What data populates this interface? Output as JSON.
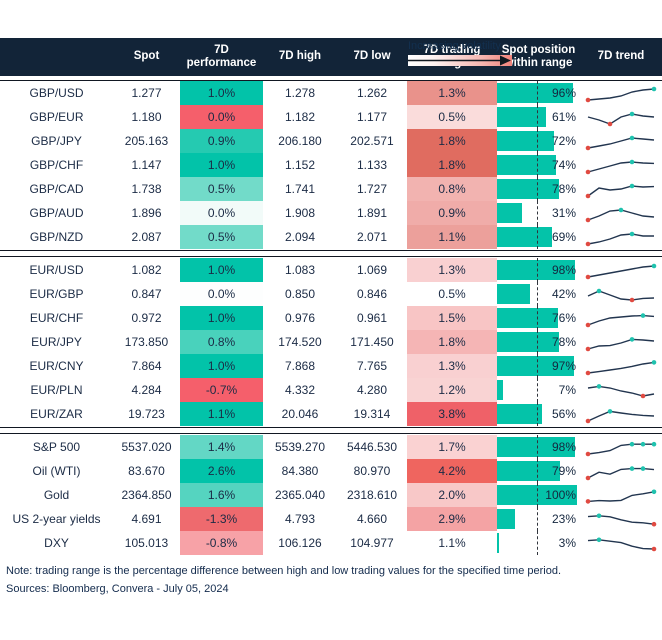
{
  "volatility_legend": {
    "label": "Increasing volatility"
  },
  "chart_data": {
    "type": "table",
    "columns": [
      "",
      "Spot",
      "7D performance",
      "7D high",
      "7D low",
      "7D trading range",
      "Spot position within range",
      "7D trend"
    ],
    "colors": {
      "header_bg": "#122438",
      "header_text": "#ffffff",
      "body_text": "#1b2b45",
      "bar_teal": "#04c3a9",
      "spark_line": "#22354f",
      "spark_min_dot": "#e04a41",
      "spark_max_dot": "#1fc2ae"
    },
    "sections": [
      {
        "rows": [
          {
            "name": "GBP/USD",
            "spot": "1.277",
            "perf": "1.0%",
            "perf_color": "#02c3a9",
            "high": "1.278",
            "low": "1.262",
            "range": "1.3%",
            "range_color": "#e9928b",
            "position_pct": 96,
            "position_label": "96%",
            "trend": {
              "points": [
                1.5,
                2.0,
                2.5,
                3.5,
                5.5,
                6.5,
                7.0
              ],
              "red": [
                0
              ],
              "teal": [
                6
              ]
            }
          },
          {
            "name": "GBP/EUR",
            "spot": "1.180",
            "perf": "0.0%",
            "perf_color": "#f55f6b",
            "high": "1.182",
            "low": "1.177",
            "range": "0.5%",
            "range_color": "#fadcdb",
            "position_pct": 61,
            "position_label": "61%",
            "trend": {
              "points": [
                5.0,
                3.5,
                1.5,
                5.0,
                6.5,
                5.5,
                5.0
              ],
              "red": [
                2
              ],
              "teal": [
                4
              ]
            }
          },
          {
            "name": "GBP/JPY",
            "spot": "205.163",
            "perf": "0.9%",
            "perf_color": "#25cab1",
            "high": "206.180",
            "low": "202.571",
            "range": "1.8%",
            "range_color": "#e06c60",
            "position_pct": 72,
            "position_label": "72%",
            "trend": {
              "points": [
                1.5,
                2.5,
                3.5,
                5.0,
                6.5,
                6.0,
                5.5
              ],
              "red": [
                0
              ],
              "teal": [
                4
              ]
            }
          },
          {
            "name": "GBP/CHF",
            "spot": "1.147",
            "perf": "1.0%",
            "perf_color": "#02c3a9",
            "high": "1.152",
            "low": "1.133",
            "range": "1.8%",
            "range_color": "#e06c60",
            "position_pct": 74,
            "position_label": "74%",
            "trend": {
              "points": [
                1.5,
                3.0,
                4.5,
                6.0,
                6.5,
                6.0,
                5.8
              ],
              "red": [
                0
              ],
              "teal": [
                4
              ]
            }
          },
          {
            "name": "GBP/CAD",
            "spot": "1.738",
            "perf": "0.5%",
            "perf_color": "#72dbc9",
            "high": "1.741",
            "low": "1.727",
            "range": "0.8%",
            "range_color": "#f2b3b0",
            "position_pct": 78,
            "position_label": "78%",
            "trend": {
              "points": [
                1.5,
                5.5,
                4.5,
                5.0,
                6.5,
                6.0,
                6.2
              ],
              "red": [
                0
              ],
              "teal": [
                4
              ]
            }
          },
          {
            "name": "GBP/AUD",
            "spot": "1.896",
            "perf": "0.0%",
            "perf_color": "#f2fbf9",
            "high": "1.908",
            "low": "1.891",
            "range": "0.9%",
            "range_color": "#f0aca9",
            "position_pct": 31,
            "position_label": "31%",
            "trend": {
              "points": [
                1.5,
                3.5,
                6.0,
                6.5,
                5.0,
                3.5,
                3.0
              ],
              "red": [
                0
              ],
              "teal": [
                3
              ]
            }
          },
          {
            "name": "GBP/NZD",
            "spot": "2.087",
            "perf": "0.5%",
            "perf_color": "#72dbc9",
            "high": "2.094",
            "low": "2.071",
            "range": "1.1%",
            "range_color": "#eca09b",
            "position_pct": 69,
            "position_label": "69%",
            "trend": {
              "points": [
                1.5,
                2.5,
                4.0,
                6.0,
                6.5,
                5.5,
                5.5
              ],
              "red": [
                0
              ],
              "teal": [
                4
              ]
            }
          }
        ]
      },
      {
        "rows": [
          {
            "name": "EUR/USD",
            "spot": "1.082",
            "perf": "1.0%",
            "perf_color": "#02c3a9",
            "high": "1.083",
            "low": "1.069",
            "range": "1.3%",
            "range_color": "#f9d0d1",
            "position_pct": 98,
            "position_label": "98%",
            "trend": {
              "points": [
                1.5,
                2.5,
                3.5,
                4.5,
                5.5,
                6.5,
                7.0
              ],
              "red": [
                0
              ],
              "teal": [
                6
              ]
            }
          },
          {
            "name": "EUR/GBP",
            "spot": "0.847",
            "perf": "0.0%",
            "perf_color": "#fdfefe",
            "high": "0.850",
            "low": "0.846",
            "range": "0.5%",
            "range_color": "#ffffff",
            "position_pct": 42,
            "position_label": "42%",
            "trend": {
              "points": [
                4.0,
                6.5,
                4.5,
                2.5,
                2.0,
                2.8,
                3.0
              ],
              "red": [
                4
              ],
              "teal": [
                1
              ]
            }
          },
          {
            "name": "EUR/CHF",
            "spot": "0.972",
            "perf": "1.0%",
            "perf_color": "#02c3a9",
            "high": "0.976",
            "low": "0.961",
            "range": "1.5%",
            "range_color": "#f8c5c5",
            "position_pct": 76,
            "position_label": "76%",
            "trend": {
              "points": [
                1.5,
                3.5,
                5.0,
                5.5,
                6.0,
                6.2,
                5.8
              ],
              "red": [
                0
              ],
              "teal": [
                5
              ]
            }
          },
          {
            "name": "EUR/JPY",
            "spot": "173.850",
            "perf": "0.8%",
            "perf_color": "#49d2bc",
            "high": "174.520",
            "low": "171.450",
            "range": "1.8%",
            "range_color": "#f5b5b5",
            "position_pct": 78,
            "position_label": "78%",
            "trend": {
              "points": [
                1.5,
                3.0,
                3.2,
                4.5,
                6.3,
                6.0,
                5.5
              ],
              "red": [
                0
              ],
              "teal": [
                4
              ]
            }
          },
          {
            "name": "EUR/CNY",
            "spot": "7.864",
            "perf": "1.0%",
            "perf_color": "#02c3a9",
            "high": "7.868",
            "low": "7.765",
            "range": "1.3%",
            "range_color": "#f9d0d1",
            "position_pct": 97,
            "position_label": "97%",
            "trend": {
              "points": [
                1.5,
                2.2,
                3.0,
                3.8,
                4.8,
                6.0,
                6.8
              ],
              "red": [
                0
              ],
              "teal": [
                6
              ]
            }
          },
          {
            "name": "EUR/PLN",
            "spot": "4.284",
            "perf": "-0.7%",
            "perf_color": "#f55f6b",
            "high": "4.332",
            "low": "4.280",
            "range": "1.2%",
            "range_color": "#f9d3d3",
            "position_pct": 7,
            "position_label": "7%",
            "trend": {
              "points": [
                6.0,
                6.8,
                6.0,
                4.5,
                3.5,
                2.0,
                3.0
              ],
              "red": [
                5
              ],
              "teal": [
                1
              ]
            }
          },
          {
            "name": "EUR/ZAR",
            "spot": "19.723",
            "perf": "1.1%",
            "perf_color": "#02c3a9",
            "high": "20.046",
            "low": "19.314",
            "range": "3.8%",
            "range_color": "#ef6168",
            "position_pct": 56,
            "position_label": "56%",
            "trend": {
              "points": [
                1.5,
                4.0,
                6.3,
                5.5,
                4.8,
                4.3,
                4.0
              ],
              "red": [
                0
              ],
              "teal": [
                2
              ]
            }
          }
        ]
      },
      {
        "rows": [
          {
            "name": "S&P 500",
            "spot": "5537.020",
            "perf": "1.4%",
            "perf_color": "#63d7c5",
            "high": "5539.270",
            "low": "5446.530",
            "range": "1.7%",
            "range_color": "#fad2d2",
            "position_pct": 98,
            "position_label": "98%",
            "trend": {
              "points": [
                1.5,
                2.2,
                3.2,
                5.8,
                6.4,
                6.4,
                6.4
              ],
              "red": [
                0
              ],
              "teal": [
                4,
                5,
                6
              ]
            }
          },
          {
            "name": "Oil (WTI)",
            "spot": "83.670",
            "perf": "2.6%",
            "perf_color": "#02c3a9",
            "high": "84.380",
            "low": "80.970",
            "range": "4.2%",
            "range_color": "#ef655f",
            "position_pct": 79,
            "position_label": "79%",
            "trend": {
              "points": [
                1.5,
                4.4,
                3.4,
                5.8,
                6.2,
                6.2,
                5.7
              ],
              "red": [
                0
              ],
              "teal": [
                4,
                5
              ]
            }
          },
          {
            "name": "Gold",
            "spot": "2364.850",
            "perf": "1.6%",
            "perf_color": "#55d4c0",
            "high": "2365.040",
            "low": "2318.610",
            "range": "2.0%",
            "range_color": "#f8c8c8",
            "position_pct": 100,
            "position_label": "100%",
            "trend": {
              "points": [
                1.8,
                2.2,
                2.0,
                2.3,
                4.8,
                5.6,
                6.6
              ],
              "red": [
                0
              ],
              "teal": [
                6
              ]
            }
          },
          {
            "name": "US 2-year yields",
            "spot": "4.691",
            "perf": "-1.3%",
            "perf_color": "#ee6a6e",
            "high": "4.793",
            "low": "4.660",
            "range": "2.9%",
            "range_color": "#f4a3a4",
            "position_pct": 23,
            "position_label": "23%",
            "trend": {
              "points": [
                6.2,
                6.6,
                6.1,
                4.6,
                3.4,
                3.1,
                2.4
              ],
              "red": [
                6
              ],
              "teal": [
                1
              ]
            }
          },
          {
            "name": "DXY",
            "spot": "105.013",
            "perf": "-0.8%",
            "perf_color": "#f7a2a7",
            "high": "106.126",
            "low": "104.977",
            "range": "1.1%",
            "range_color": "#ffffff",
            "position_pct": 3,
            "position_label": "3%",
            "trend": {
              "points": [
                6.2,
                6.6,
                5.9,
                5.2,
                3.4,
                2.2,
                2.0
              ],
              "red": [
                6
              ],
              "teal": [
                1
              ]
            }
          }
        ]
      }
    ]
  },
  "footer": {
    "note": "Note: trading range is the percentage difference between high and low trading values for the specified time period.",
    "sources": "Sources: Bloomberg, Convera - July 05, 2024"
  }
}
